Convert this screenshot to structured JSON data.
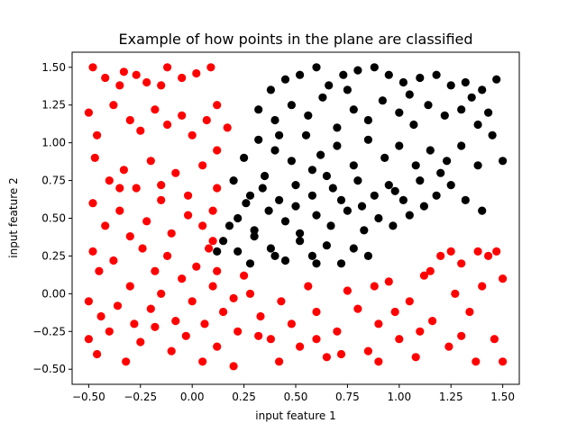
{
  "chart_data": {
    "type": "scatter",
    "title": "Example of how points in the plane are classified",
    "xlabel": "input feature 1",
    "ylabel": "input feature 2",
    "xlim": [
      -0.58,
      1.58
    ],
    "ylim": [
      -0.6,
      1.6
    ],
    "xticks": [
      "−0.50",
      "−0.25",
      "0.00",
      "0.25",
      "0.50",
      "0.75",
      "1.00",
      "1.25",
      "1.50"
    ],
    "xtick_values": [
      -0.5,
      -0.25,
      0,
      0.25,
      0.5,
      0.75,
      1.0,
      1.25,
      1.5
    ],
    "yticks": [
      "−0.50",
      "−0.25",
      "0.00",
      "0.25",
      "0.50",
      "0.75",
      "1.00",
      "1.25",
      "1.50"
    ],
    "ytick_values": [
      -0.5,
      -0.25,
      0,
      0.25,
      0.5,
      0.75,
      1.0,
      1.25,
      1.5
    ],
    "grid": false,
    "series": [
      {
        "color": "#ff0000",
        "points": [
          [
            -0.48,
            1.5
          ],
          [
            -0.42,
            1.43
          ],
          [
            -0.35,
            1.38
          ],
          [
            -0.33,
            1.47
          ],
          [
            -0.27,
            1.45
          ],
          [
            -0.22,
            1.4
          ],
          [
            -0.15,
            1.38
          ],
          [
            -0.12,
            1.5
          ],
          [
            -0.05,
            1.43
          ],
          [
            0.02,
            1.46
          ],
          [
            0.09,
            1.5
          ],
          [
            0.12,
            1.25
          ],
          [
            -0.5,
            1.2
          ],
          [
            -0.46,
            1.05
          ],
          [
            -0.38,
            1.25
          ],
          [
            -0.3,
            1.15
          ],
          [
            -0.25,
            1.08
          ],
          [
            -0.18,
            1.22
          ],
          [
            -0.12,
            1.12
          ],
          [
            -0.05,
            1.18
          ],
          [
            0.0,
            1.05
          ],
          [
            0.07,
            1.15
          ],
          [
            0.12,
            0.95
          ],
          [
            0.17,
            1.1
          ],
          [
            -0.47,
            0.9
          ],
          [
            -0.4,
            0.75
          ],
          [
            -0.33,
            0.82
          ],
          [
            -0.27,
            0.7
          ],
          [
            -0.2,
            0.88
          ],
          [
            -0.15,
            0.72
          ],
          [
            -0.08,
            0.8
          ],
          [
            -0.02,
            0.65
          ],
          [
            0.05,
            0.85
          ],
          [
            0.1,
            0.55
          ],
          [
            0.12,
            0.7
          ],
          [
            -0.48,
            0.6
          ],
          [
            -0.42,
            0.45
          ],
          [
            -0.35,
            0.55
          ],
          [
            -0.3,
            0.38
          ],
          [
            -0.22,
            0.48
          ],
          [
            -0.15,
            0.62
          ],
          [
            -0.1,
            0.4
          ],
          [
            -0.02,
            0.52
          ],
          [
            0.05,
            0.45
          ],
          [
            0.1,
            0.35
          ],
          [
            -0.48,
            0.28
          ],
          [
            -0.45,
            0.15
          ],
          [
            -0.38,
            0.22
          ],
          [
            -0.3,
            0.05
          ],
          [
            -0.24,
            0.3
          ],
          [
            -0.18,
            0.15
          ],
          [
            -0.12,
            0.25
          ],
          [
            -0.05,
            0.1
          ],
          [
            0.02,
            0.18
          ],
          [
            0.08,
            0.3
          ],
          [
            0.12,
            0.15
          ],
          [
            -0.5,
            -0.05
          ],
          [
            -0.44,
            -0.15
          ],
          [
            -0.36,
            -0.08
          ],
          [
            -0.28,
            -0.2
          ],
          [
            -0.2,
            -0.1
          ],
          [
            -0.15,
            0.0
          ],
          [
            -0.08,
            -0.18
          ],
          [
            0.0,
            -0.05
          ],
          [
            0.06,
            -0.2
          ],
          [
            0.1,
            0.05
          ],
          [
            0.15,
            -0.12
          ],
          [
            0.2,
            -0.03
          ],
          [
            -0.5,
            -0.3
          ],
          [
            -0.46,
            -0.4
          ],
          [
            -0.4,
            -0.25
          ],
          [
            -0.32,
            -0.45
          ],
          [
            -0.25,
            -0.32
          ],
          [
            -0.18,
            -0.22
          ],
          [
            -0.1,
            -0.38
          ],
          [
            -0.03,
            -0.28
          ],
          [
            0.05,
            -0.45
          ],
          [
            0.12,
            -0.35
          ],
          [
            0.2,
            -0.48
          ],
          [
            0.22,
            -0.25
          ],
          [
            0.28,
            0.0
          ],
          [
            0.33,
            -0.15
          ],
          [
            0.38,
            -0.3
          ],
          [
            0.43,
            -0.05
          ],
          [
            0.48,
            -0.2
          ],
          [
            0.52,
            -0.35
          ],
          [
            0.56,
            0.05
          ],
          [
            0.6,
            -0.12
          ],
          [
            0.65,
            -0.42
          ],
          [
            0.7,
            -0.25
          ],
          [
            0.75,
            0.02
          ],
          [
            0.8,
            -0.1
          ],
          [
            0.85,
            -0.38
          ],
          [
            0.9,
            -0.2
          ],
          [
            0.95,
            0.08
          ],
          [
            1.0,
            -0.3
          ],
          [
            1.05,
            -0.05
          ],
          [
            1.08,
            -0.42
          ],
          [
            1.12,
            0.12
          ],
          [
            1.16,
            -0.18
          ],
          [
            1.2,
            0.25
          ],
          [
            1.24,
            -0.35
          ],
          [
            1.27,
            0.0
          ],
          [
            1.3,
            0.2
          ],
          [
            1.34,
            -0.12
          ],
          [
            1.37,
            -0.45
          ],
          [
            1.4,
            0.05
          ],
          [
            1.43,
            0.25
          ],
          [
            1.46,
            -0.3
          ],
          [
            1.5,
            0.1
          ],
          [
            1.5,
            -0.45
          ],
          [
            1.3,
            -0.28
          ],
          [
            1.15,
            0.15
          ],
          [
            0.98,
            -0.12
          ],
          [
            0.88,
            0.05
          ],
          [
            0.72,
            -0.4
          ],
          [
            0.6,
            -0.3
          ],
          [
            0.42,
            -0.45
          ],
          [
            0.32,
            -0.28
          ],
          [
            0.25,
            0.12
          ],
          [
            1.25,
            0.28
          ],
          [
            1.38,
            0.28
          ],
          [
            1.47,
            0.28
          ],
          [
            0.9,
            -0.45
          ],
          [
            1.1,
            -0.25
          ],
          [
            -0.35,
            0.7
          ]
        ]
      },
      {
        "color": "#000000",
        "points": [
          [
            0.38,
            1.35
          ],
          [
            0.45,
            1.42
          ],
          [
            0.52,
            1.45
          ],
          [
            0.6,
            1.5
          ],
          [
            0.66,
            1.38
          ],
          [
            0.73,
            1.45
          ],
          [
            0.8,
            1.48
          ],
          [
            0.88,
            1.5
          ],
          [
            0.95,
            1.45
          ],
          [
            1.02,
            1.4
          ],
          [
            1.1,
            1.43
          ],
          [
            1.18,
            1.45
          ],
          [
            1.25,
            1.38
          ],
          [
            1.32,
            1.4
          ],
          [
            1.4,
            1.35
          ],
          [
            1.47,
            1.42
          ],
          [
            0.32,
            1.22
          ],
          [
            0.4,
            1.15
          ],
          [
            0.48,
            1.25
          ],
          [
            0.56,
            1.18
          ],
          [
            0.63,
            1.3
          ],
          [
            0.7,
            1.1
          ],
          [
            0.78,
            1.22
          ],
          [
            0.85,
            1.15
          ],
          [
            0.92,
            1.28
          ],
          [
            1.0,
            1.2
          ],
          [
            1.07,
            1.12
          ],
          [
            1.14,
            1.25
          ],
          [
            1.22,
            1.18
          ],
          [
            1.3,
            1.22
          ],
          [
            1.38,
            1.12
          ],
          [
            1.45,
            1.05
          ],
          [
            0.25,
            0.9
          ],
          [
            0.32,
            1.02
          ],
          [
            0.4,
            0.95
          ],
          [
            0.48,
            0.88
          ],
          [
            0.55,
            1.05
          ],
          [
            0.62,
            0.92
          ],
          [
            0.7,
            0.98
          ],
          [
            0.78,
            0.85
          ],
          [
            0.85,
            1.02
          ],
          [
            0.93,
            0.9
          ],
          [
            1.0,
            0.98
          ],
          [
            1.08,
            0.85
          ],
          [
            1.15,
            0.95
          ],
          [
            1.23,
            0.88
          ],
          [
            1.3,
            0.98
          ],
          [
            1.38,
            0.85
          ],
          [
            1.5,
            0.88
          ],
          [
            0.2,
            0.75
          ],
          [
            0.28,
            0.65
          ],
          [
            0.35,
            0.78
          ],
          [
            0.42,
            0.62
          ],
          [
            0.5,
            0.72
          ],
          [
            0.58,
            0.65
          ],
          [
            0.65,
            0.78
          ],
          [
            0.72,
            0.62
          ],
          [
            0.8,
            0.75
          ],
          [
            0.88,
            0.65
          ],
          [
            0.95,
            0.72
          ],
          [
            1.02,
            0.62
          ],
          [
            1.1,
            0.75
          ],
          [
            1.18,
            0.65
          ],
          [
            1.25,
            0.72
          ],
          [
            1.32,
            0.62
          ],
          [
            1.4,
            0.55
          ],
          [
            0.22,
            0.5
          ],
          [
            0.3,
            0.42
          ],
          [
            0.37,
            0.55
          ],
          [
            0.45,
            0.48
          ],
          [
            0.52,
            0.4
          ],
          [
            0.6,
            0.52
          ],
          [
            0.67,
            0.45
          ],
          [
            0.75,
            0.55
          ],
          [
            0.83,
            0.42
          ],
          [
            0.9,
            0.5
          ],
          [
            0.97,
            0.45
          ],
          [
            1.05,
            0.52
          ],
          [
            0.15,
            0.35
          ],
          [
            0.22,
            0.28
          ],
          [
            0.3,
            0.38
          ],
          [
            0.38,
            0.3
          ],
          [
            0.45,
            0.22
          ],
          [
            0.52,
            0.35
          ],
          [
            0.58,
            0.25
          ],
          [
            0.65,
            0.32
          ],
          [
            0.72,
            0.2
          ],
          [
            0.78,
            0.3
          ],
          [
            0.85,
            0.25
          ],
          [
            0.28,
            0.2
          ],
          [
            0.4,
            0.25
          ],
          [
            0.6,
            0.2
          ],
          [
            0.12,
            0.28
          ],
          [
            0.18,
            0.45
          ],
          [
            0.26,
            0.6
          ],
          [
            0.34,
            0.7
          ],
          [
            0.5,
            0.58
          ],
          [
            0.68,
            0.7
          ],
          [
            0.82,
            0.58
          ],
          [
            0.98,
            0.68
          ],
          [
            1.12,
            0.58
          ],
          [
            1.2,
            0.8
          ],
          [
            1.35,
            1.3
          ],
          [
            1.43,
            1.2
          ],
          [
            0.42,
            1.05
          ],
          [
            0.58,
            0.82
          ],
          [
            0.75,
            1.35
          ],
          [
            1.05,
            1.32
          ]
        ]
      }
    ]
  }
}
